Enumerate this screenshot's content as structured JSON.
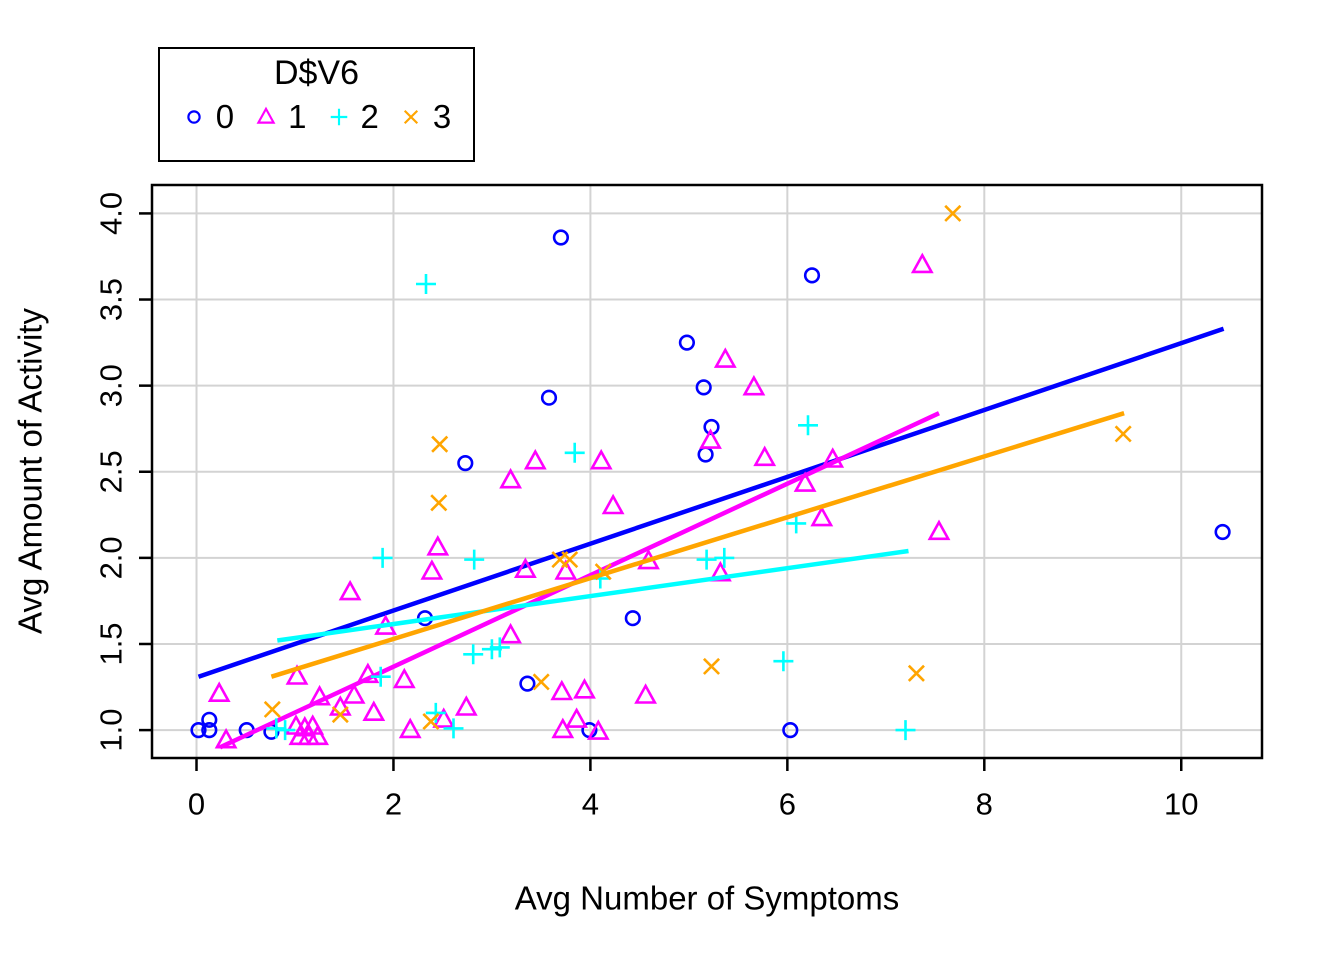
{
  "figure": {
    "background": "#FFFFFF",
    "text_color": "#000000"
  },
  "chart_data": {
    "type": "scatter",
    "title": "",
    "xlabel": "Avg Number of Symptoms",
    "ylabel": "Avg Amount of Activity",
    "xlim": [
      -0.452,
      10.82
    ],
    "ylim": [
      0.838,
      4.165
    ],
    "grid": true,
    "grid_color": "#D3D3D3",
    "xticks": [
      {
        "value": 0,
        "label": "0"
      },
      {
        "value": 2,
        "label": "2"
      },
      {
        "value": 4,
        "label": "4"
      },
      {
        "value": 6,
        "label": "6"
      },
      {
        "value": 8,
        "label": "8"
      },
      {
        "value": 10,
        "label": "10"
      }
    ],
    "yticks": [
      {
        "value": 1.0,
        "label": "1.0"
      },
      {
        "value": 1.5,
        "label": "1.5"
      },
      {
        "value": 2.0,
        "label": "2.0"
      },
      {
        "value": 2.5,
        "label": "2.5"
      },
      {
        "value": 3.0,
        "label": "3.0"
      },
      {
        "value": 3.5,
        "label": "3.5"
      },
      {
        "value": 4.0,
        "label": "4.0"
      }
    ],
    "legend": {
      "title": "D$V6",
      "position": "top-left"
    },
    "series": [
      {
        "name": "0",
        "marker": "circle",
        "color": "#0000FF",
        "points": [
          [
            0.02,
            1.0
          ],
          [
            0.13,
            1.0
          ],
          [
            0.13,
            1.06
          ],
          [
            0.51,
            1.0
          ],
          [
            0.76,
            0.99
          ],
          [
            2.32,
            1.65
          ],
          [
            2.73,
            2.55
          ],
          [
            3.36,
            1.27
          ],
          [
            3.58,
            2.93
          ],
          [
            3.7,
            3.86
          ],
          [
            3.99,
            1.0
          ],
          [
            4.43,
            1.65
          ],
          [
            4.98,
            3.25
          ],
          [
            5.15,
            2.99
          ],
          [
            5.17,
            2.6
          ],
          [
            5.23,
            2.76
          ],
          [
            6.03,
            1.0
          ],
          [
            6.25,
            3.64
          ],
          [
            10.42,
            2.15
          ]
        ],
        "trendline": {
          "x1": 0.02,
          "y1": 1.31,
          "x2": 10.43,
          "y2": 3.33
        }
      },
      {
        "name": "1",
        "marker": "triangle",
        "color": "#FF00FF",
        "points": [
          [
            0.23,
            1.21
          ],
          [
            0.3,
            0.94
          ],
          [
            1.01,
            1.02
          ],
          [
            1.02,
            1.31
          ],
          [
            1.05,
            0.96
          ],
          [
            1.1,
            1.01
          ],
          [
            1.14,
            0.96
          ],
          [
            1.18,
            1.02
          ],
          [
            1.23,
            0.96
          ],
          [
            1.25,
            1.19
          ],
          [
            1.46,
            1.13
          ],
          [
            1.56,
            1.8
          ],
          [
            1.6,
            1.2
          ],
          [
            1.74,
            1.32
          ],
          [
            1.8,
            1.1
          ],
          [
            1.92,
            1.6
          ],
          [
            2.11,
            1.29
          ],
          [
            2.17,
            1.0
          ],
          [
            2.39,
            1.92
          ],
          [
            2.45,
            2.06
          ],
          [
            2.51,
            1.06
          ],
          [
            2.74,
            1.13
          ],
          [
            3.19,
            1.55
          ],
          [
            3.19,
            2.45
          ],
          [
            3.34,
            1.93
          ],
          [
            3.44,
            2.56
          ],
          [
            3.71,
            1.22
          ],
          [
            3.72,
            1.0
          ],
          [
            3.75,
            1.92
          ],
          [
            3.86,
            1.06
          ],
          [
            3.94,
            1.23
          ],
          [
            4.08,
            0.99
          ],
          [
            4.11,
            2.56
          ],
          [
            4.23,
            2.3
          ],
          [
            4.56,
            1.2
          ],
          [
            4.59,
            1.98
          ],
          [
            5.22,
            2.68
          ],
          [
            5.32,
            1.91
          ],
          [
            5.37,
            3.15
          ],
          [
            5.66,
            2.99
          ],
          [
            5.77,
            2.58
          ],
          [
            6.18,
            2.43
          ],
          [
            6.35,
            2.23
          ],
          [
            6.46,
            2.57
          ],
          [
            7.37,
            3.7
          ],
          [
            7.54,
            2.15
          ]
        ],
        "trendline": {
          "x1": 0.24,
          "y1": 0.9,
          "x2": 7.54,
          "y2": 2.84
        }
      },
      {
        "name": "2",
        "marker": "plus",
        "color": "#00FFFF",
        "points": [
          [
            0.81,
            1.01
          ],
          [
            0.9,
            1.0
          ],
          [
            1.87,
            1.31
          ],
          [
            1.89,
            2.0
          ],
          [
            2.33,
            3.59
          ],
          [
            2.43,
            1.1
          ],
          [
            2.61,
            1.01
          ],
          [
            2.81,
            1.44
          ],
          [
            2.82,
            1.99
          ],
          [
            3.0,
            1.47
          ],
          [
            3.08,
            1.48
          ],
          [
            3.84,
            2.61
          ],
          [
            4.1,
            1.88
          ],
          [
            5.18,
            1.99
          ],
          [
            5.36,
            2.0
          ],
          [
            5.96,
            1.4
          ],
          [
            6.09,
            2.2
          ],
          [
            6.21,
            2.77
          ],
          [
            7.2,
            1.0
          ]
        ],
        "trendline": {
          "x1": 0.82,
          "y1": 1.52,
          "x2": 7.23,
          "y2": 2.04
        }
      },
      {
        "name": "3",
        "marker": "cross",
        "color": "#FFA500",
        "points": [
          [
            0.77,
            1.12
          ],
          [
            1.46,
            1.09
          ],
          [
            2.38,
            1.05
          ],
          [
            2.46,
            2.32
          ],
          [
            2.47,
            2.66
          ],
          [
            3.5,
            1.28
          ],
          [
            3.69,
            1.99
          ],
          [
            3.79,
            1.99
          ],
          [
            4.13,
            1.92
          ],
          [
            5.23,
            1.37
          ],
          [
            7.31,
            1.33
          ],
          [
            7.68,
            4.0
          ],
          [
            9.41,
            2.72
          ]
        ],
        "trendline": {
          "x1": 0.76,
          "y1": 1.31,
          "x2": 9.42,
          "y2": 2.84
        }
      }
    ]
  }
}
